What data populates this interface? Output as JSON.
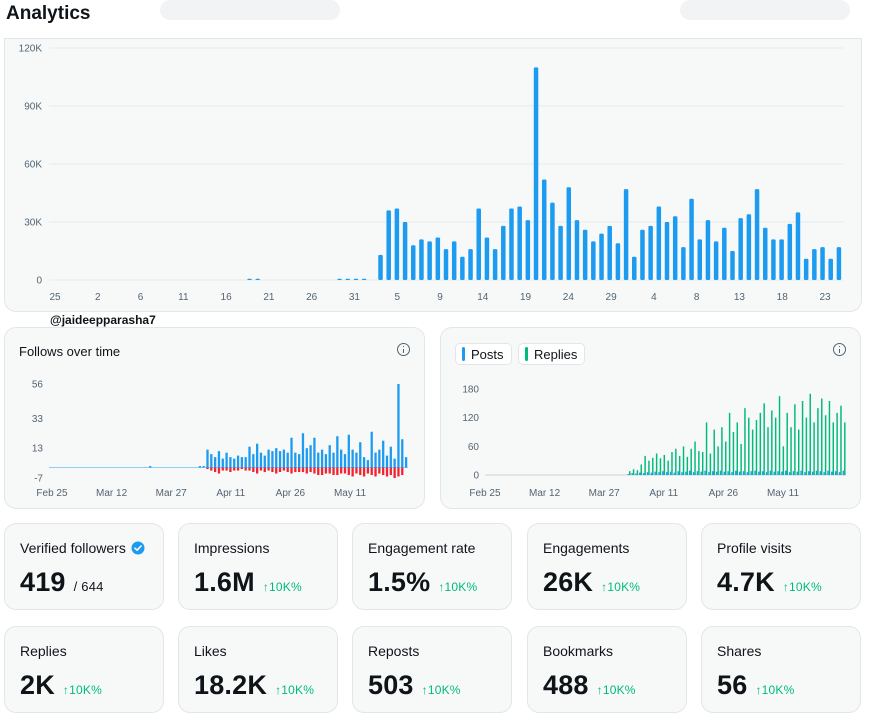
{
  "page": {
    "title": "Analytics"
  },
  "main_chart": {
    "y_ticks": [
      "120K",
      "90K",
      "60K",
      "30K",
      "0"
    ],
    "x_ticks": [
      "25",
      "2",
      "6",
      "11",
      "16",
      "21",
      "26",
      "31",
      "5",
      "9",
      "14",
      "19",
      "24",
      "29",
      "4",
      "8",
      "13",
      "18",
      "23"
    ],
    "color": "#1d9bf0"
  },
  "handle": "@jaideepparasha7",
  "follows_card": {
    "title": "Follows over time",
    "y_ticks": [
      "56",
      "33",
      "13",
      "-7"
    ],
    "x_ticks": [
      "Feb 25",
      "Mar 12",
      "Mar 27",
      "Apr 11",
      "Apr 26",
      "May 11"
    ],
    "colors": {
      "follows": "#1d9bf0",
      "unfollows": "#f4212e"
    }
  },
  "posts_card": {
    "legend": [
      {
        "label": "Posts",
        "color": "#1d9bf0"
      },
      {
        "label": "Replies",
        "color": "#00ba7c"
      }
    ],
    "y_ticks": [
      "180",
      "120",
      "60",
      "0"
    ],
    "x_ticks": [
      "Feb 25",
      "Mar 12",
      "Mar 27",
      "Apr 11",
      "Apr 26",
      "May 11"
    ]
  },
  "metrics": [
    {
      "label": "Verified followers",
      "value": "419",
      "sub": "/ 644",
      "verified": true
    },
    {
      "label": "Impressions",
      "value": "1.6M",
      "change": "↑10K%"
    },
    {
      "label": "Engagement rate",
      "value": "1.5%",
      "change": "↑10K%"
    },
    {
      "label": "Engagements",
      "value": "26K",
      "change": "↑10K%"
    },
    {
      "label": "Profile visits",
      "value": "4.7K",
      "change": "↑10K%"
    },
    {
      "label": "Replies",
      "value": "2K",
      "change": "↑10K%"
    },
    {
      "label": "Likes",
      "value": "18.2K",
      "change": "↑10K%"
    },
    {
      "label": "Reposts",
      "value": "503",
      "change": "↑10K%"
    },
    {
      "label": "Bookmarks",
      "value": "488",
      "change": "↑10K%"
    },
    {
      "label": "Shares",
      "value": "56",
      "change": "↑10K%"
    }
  ],
  "chart_data": [
    {
      "type": "bar",
      "title": "",
      "ylim": [
        0,
        120000
      ],
      "values": [
        0,
        0,
        0,
        0,
        0,
        0,
        0,
        0,
        0,
        0,
        0,
        0,
        0,
        0,
        0,
        0,
        0,
        0,
        0,
        0,
        0,
        0,
        0,
        0,
        500,
        500,
        0,
        0,
        0,
        0,
        0,
        0,
        0,
        0,
        0,
        500,
        500,
        500,
        500,
        0,
        13000,
        36000,
        37000,
        30000,
        18000,
        21000,
        20000,
        22000,
        16000,
        20000,
        12000,
        16000,
        37000,
        22000,
        16000,
        28000,
        37000,
        38000,
        31000,
        110000,
        52000,
        40000,
        28000,
        48000,
        31000,
        26000,
        20000,
        24000,
        28000,
        19000,
        47000,
        12000,
        26000,
        28000,
        38000,
        30000,
        33000,
        17000,
        42000,
        21000,
        31000,
        20000,
        27000,
        15000,
        32000,
        34000,
        47000,
        27000,
        21000,
        21000,
        29000,
        35000,
        11000,
        16000,
        17000,
        11000,
        17000
      ],
      "ytick_labels": [
        "120K",
        "90K",
        "60K",
        "30K",
        "0"
      ],
      "xtick_labels": [
        "25",
        "2",
        "6",
        "11",
        "16",
        "21",
        "26",
        "31",
        "5",
        "9",
        "14",
        "19",
        "24",
        "29",
        "4",
        "8",
        "13",
        "18",
        "23"
      ]
    },
    {
      "type": "bar",
      "title": "Follows over time",
      "ylim": [
        -7,
        56
      ],
      "series": [
        {
          "name": "Follows",
          "values": [
            0,
            0,
            0,
            0,
            0,
            0,
            0,
            0,
            0,
            0,
            0,
            0,
            0,
            0,
            0,
            0,
            0,
            0,
            0,
            0,
            0,
            0,
            0,
            0,
            0,
            0,
            1,
            0,
            0,
            0,
            0,
            0,
            0,
            0,
            0,
            0,
            0,
            0,
            0,
            1,
            1,
            12,
            9,
            7,
            11,
            6,
            10,
            7,
            6,
            8,
            7,
            7,
            14,
            9,
            16,
            10,
            8,
            12,
            11,
            13,
            11,
            12,
            10,
            20,
            10,
            9,
            23,
            13,
            15,
            20,
            10,
            12,
            9,
            15,
            10,
            21,
            12,
            9,
            22,
            12,
            10,
            17,
            7,
            5,
            24,
            10,
            12,
            18,
            8,
            14,
            6,
            56,
            19,
            7
          ]
        },
        {
          "name": "Unfollows",
          "values": [
            0,
            0,
            0,
            0,
            0,
            0,
            0,
            0,
            0,
            0,
            0,
            0,
            0,
            0,
            0,
            0,
            0,
            0,
            0,
            0,
            0,
            0,
            0,
            0,
            0,
            0,
            0,
            0,
            0,
            0,
            0,
            0,
            0,
            0,
            0,
            0,
            0,
            0,
            0,
            0,
            0,
            -1,
            -2,
            -3,
            -4,
            -2,
            -2,
            -3,
            -2,
            -2,
            -1,
            -2,
            -2,
            -3,
            -4,
            -2,
            -3,
            -2,
            -3,
            -4,
            -3,
            -2,
            -3,
            -4,
            -3,
            -3,
            -3,
            -4,
            -3,
            -4,
            -5,
            -5,
            -4,
            -4,
            -5,
            -5,
            -4,
            -4,
            -5,
            -6,
            -4,
            -5,
            -6,
            -4,
            -5,
            -6,
            -4,
            -5,
            -6,
            -5,
            -7,
            -6,
            -5
          ]
        }
      ],
      "ytick_labels": [
        "56",
        "33",
        "13",
        "-7"
      ],
      "xtick_labels": [
        "Feb 25",
        "Mar 12",
        "Mar 27",
        "Apr 11",
        "Apr 26",
        "May 11"
      ]
    },
    {
      "type": "bar",
      "title": "",
      "ylim": [
        0,
        180
      ],
      "series": [
        {
          "name": "Posts",
          "values": [
            0,
            0,
            0,
            0,
            0,
            0,
            0,
            0,
            0,
            0,
            0,
            0,
            0,
            0,
            0,
            0,
            0,
            0,
            0,
            0,
            0,
            0,
            0,
            0,
            0,
            0,
            0,
            0,
            0,
            0,
            0,
            0,
            0,
            0,
            0,
            0,
            0,
            2,
            4,
            3,
            5,
            4,
            6,
            5,
            7,
            6,
            8,
            6,
            7,
            5,
            8,
            6,
            7,
            9,
            6,
            8,
            7,
            9,
            6,
            8,
            7,
            9,
            7,
            8,
            6,
            9,
            7,
            8,
            6,
            8,
            9,
            7,
            8,
            6,
            9,
            7,
            8,
            7,
            9,
            6,
            8,
            7,
            9,
            6,
            8,
            7,
            9,
            8,
            6,
            9,
            7,
            8,
            6,
            9
          ]
        },
        {
          "name": "Replies",
          "values": [
            0,
            0,
            0,
            0,
            0,
            0,
            0,
            0,
            0,
            0,
            0,
            0,
            0,
            0,
            0,
            0,
            0,
            0,
            0,
            0,
            0,
            0,
            0,
            0,
            0,
            0,
            0,
            0,
            0,
            0,
            0,
            0,
            0,
            0,
            0,
            0,
            0,
            8,
            12,
            10,
            22,
            40,
            30,
            36,
            45,
            35,
            42,
            30,
            48,
            55,
            40,
            60,
            38,
            55,
            70,
            50,
            48,
            110,
            45,
            95,
            60,
            100,
            70,
            130,
            90,
            110,
            65,
            140,
            120,
            95,
            115,
            130,
            150,
            100,
            135,
            120,
            165,
            60,
            130,
            100,
            148,
            95,
            155,
            120,
            170,
            110,
            140,
            160,
            125,
            155,
            110,
            130,
            145,
            110
          ]
        }
      ],
      "legend": [
        "Posts",
        "Replies"
      ],
      "ytick_labels": [
        "180",
        "120",
        "60",
        "0"
      ],
      "xtick_labels": [
        "Feb 25",
        "Mar 12",
        "Mar 27",
        "Apr 11",
        "Apr 26",
        "May 11"
      ]
    }
  ]
}
